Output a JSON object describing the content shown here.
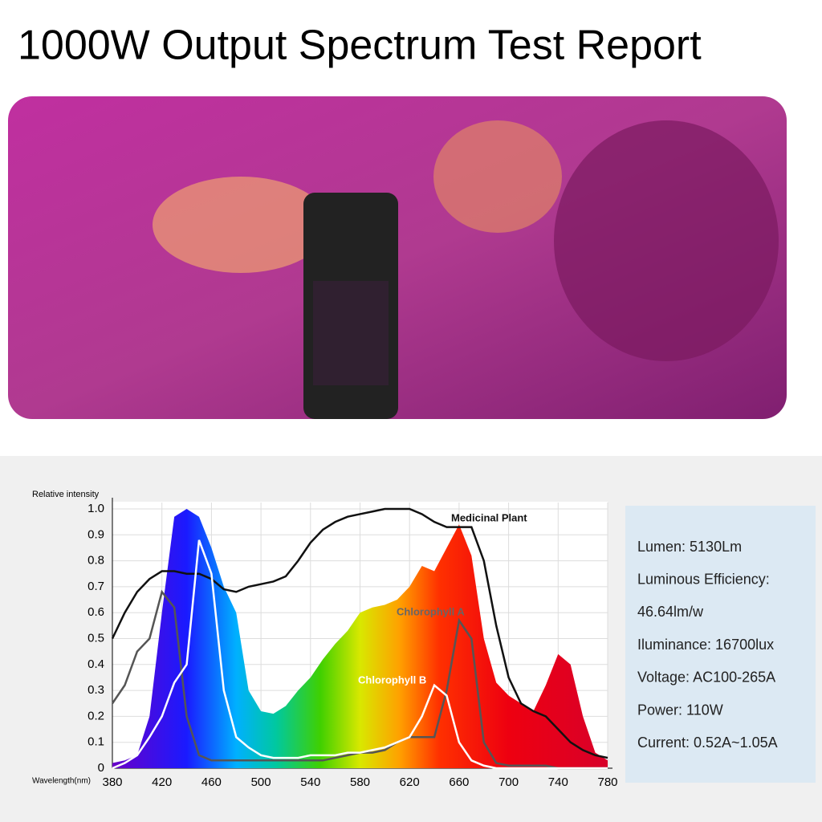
{
  "header": {
    "title": "1000W Output Spectrum Test Report"
  },
  "chart_data": {
    "type": "line",
    "ylabel": "Relative intensity",
    "xlabel": "Wavelength(nm)",
    "x": [
      380,
      390,
      400,
      410,
      420,
      430,
      440,
      450,
      460,
      470,
      480,
      490,
      500,
      510,
      520,
      530,
      540,
      550,
      560,
      570,
      580,
      590,
      600,
      610,
      620,
      630,
      640,
      650,
      660,
      670,
      680,
      690,
      700,
      710,
      720,
      730,
      740,
      750,
      760,
      770,
      780
    ],
    "xlim": [
      380,
      780
    ],
    "xticks": [
      380,
      420,
      460,
      500,
      540,
      580,
      620,
      660,
      700,
      740,
      780
    ],
    "ylim": [
      0,
      1
    ],
    "yticks": [
      0,
      0.1,
      0.2,
      0.3,
      0.4,
      0.5,
      0.6,
      0.7,
      0.8,
      0.9,
      {
        "value": 1,
        "label": "1.0"
      }
    ],
    "grid": true,
    "series": [
      {
        "style": "area",
        "color": "rainbow",
        "values": [
          0.02,
          0.03,
          0.05,
          0.2,
          0.6,
          0.97,
          1.0,
          0.97,
          0.85,
          0.7,
          0.6,
          0.3,
          0.22,
          0.21,
          0.24,
          0.3,
          0.35,
          0.42,
          0.48,
          0.53,
          0.6,
          0.62,
          0.63,
          0.65,
          0.7,
          0.78,
          0.76,
          0.85,
          0.94,
          0.82,
          0.5,
          0.33,
          0.28,
          0.25,
          0.22,
          0.32,
          0.44,
          0.4,
          0.2,
          0.06,
          0.03
        ]
      },
      {
        "name": "Medicinal Plant",
        "style": "line",
        "color": "#111111",
        "values": [
          0.5,
          0.6,
          0.68,
          0.73,
          0.76,
          0.76,
          0.75,
          0.75,
          0.73,
          0.69,
          0.68,
          0.7,
          0.71,
          0.72,
          0.74,
          0.8,
          0.87,
          0.92,
          0.95,
          0.97,
          0.98,
          0.99,
          1.0,
          1.0,
          1.0,
          0.98,
          0.95,
          0.93,
          0.93,
          0.93,
          0.8,
          0.55,
          0.35,
          0.25,
          0.22,
          0.2,
          0.15,
          0.1,
          0.07,
          0.05,
          0.04
        ]
      },
      {
        "name": "Chlorophyll A",
        "style": "line",
        "color": "#555555",
        "values": [
          0.25,
          0.32,
          0.45,
          0.5,
          0.68,
          0.62,
          0.2,
          0.05,
          0.03,
          0.03,
          0.03,
          0.03,
          0.03,
          0.03,
          0.03,
          0.03,
          0.03,
          0.03,
          0.04,
          0.05,
          0.06,
          0.06,
          0.07,
          0.1,
          0.12,
          0.12,
          0.12,
          0.3,
          0.57,
          0.5,
          0.1,
          0.02,
          0.01,
          0.01,
          0.01,
          0.01,
          0,
          0,
          0,
          0,
          0
        ]
      },
      {
        "name": "Chlorophyll B",
        "style": "line",
        "color": "#ffffff",
        "values": [
          0,
          0.02,
          0.05,
          0.12,
          0.2,
          0.33,
          0.4,
          0.88,
          0.75,
          0.3,
          0.12,
          0.08,
          0.05,
          0.04,
          0.04,
          0.04,
          0.05,
          0.05,
          0.05,
          0.06,
          0.06,
          0.07,
          0.08,
          0.1,
          0.12,
          0.2,
          0.32,
          0.28,
          0.1,
          0.03,
          0.01,
          0,
          0,
          0,
          0,
          0,
          0,
          0,
          0,
          0,
          0
        ]
      }
    ]
  },
  "specs": [
    "Lumen: 5130Lm",
    "Luminous Efficiency:",
    "46.64lm/w",
    "Iluminance: 16700lux",
    "Voltage: AC100-265A",
    "Power: 110W",
    "Current: 0.52A~1.05A"
  ]
}
